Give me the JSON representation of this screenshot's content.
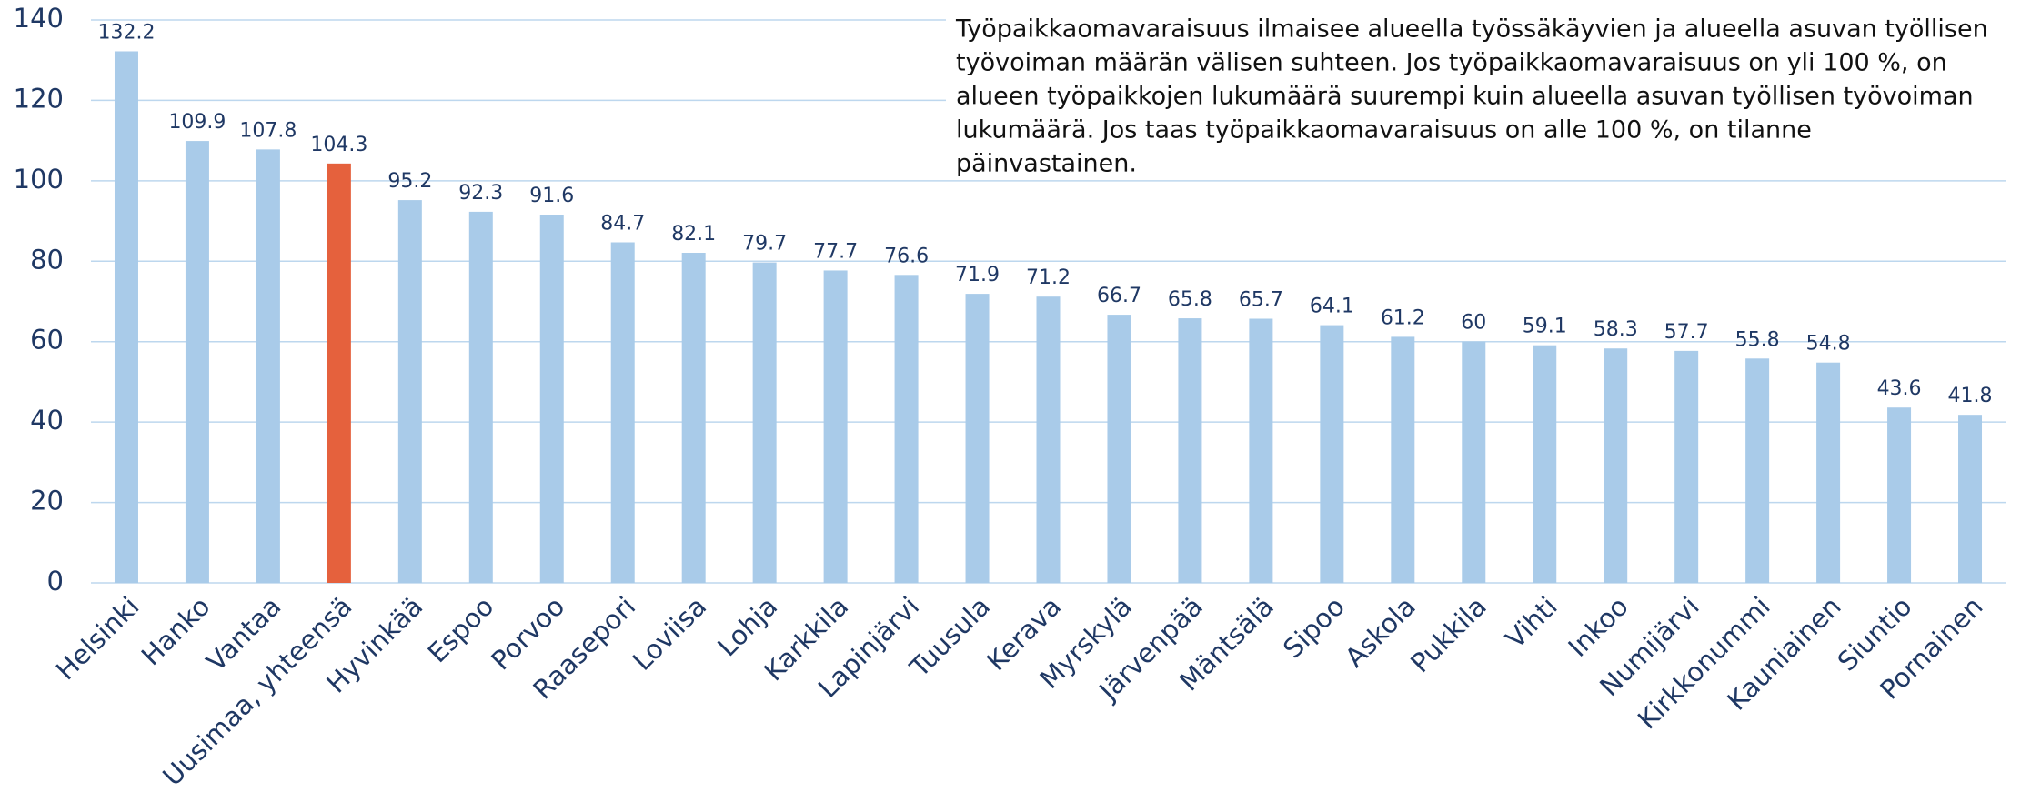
{
  "chart_data": {
    "type": "bar",
    "annotation": [
      "Työpaikkaomavaraisuus ilmaisee alueella työssäkäyvien ja alueella asuvan työllisen",
      "työvoiman määrän välisen suhteen. Jos työpaikkaomavaraisuus on yli 100 %, on",
      "alueen työpaikkojen lukumäärä suurempi kuin alueella asuvan työllisen työvoiman",
      "lukumäärä. Jos taas työpaikkaomavaraisuus on alle 100 %, on tilanne",
      "päinvastainen."
    ],
    "categories": [
      "Helsinki",
      "Hanko",
      "Vantaa",
      "Uusimaa, yhteensä",
      "Hyvinkää",
      "Espoo",
      "Porvoo",
      "Raasepori",
      "Loviisa",
      "Lohja",
      "Karkkila",
      "Lapinjärvi",
      "Tuusula",
      "Kerava",
      "Myrskylä",
      "Järvenpää",
      "Mäntsälä",
      "Sipoo",
      "Askola",
      "Pukkila",
      "Vihti",
      "Inkoo",
      "Numijärvi",
      "Kirkkonummi",
      "Kauniainen",
      "Siuntio",
      "Pornainen"
    ],
    "values": [
      132.2,
      109.9,
      107.8,
      104.3,
      95.2,
      92.3,
      91.6,
      84.7,
      82.1,
      79.7,
      77.7,
      76.6,
      71.9,
      71.2,
      66.7,
      65.8,
      65.7,
      64.1,
      61.2,
      60,
      59.1,
      58.3,
      57.7,
      55.8,
      54.8,
      43.6,
      41.8
    ],
    "colors": [
      "#a9cbe9",
      "#a9cbe9",
      "#a9cbe9",
      "#e5613d",
      "#a9cbe9",
      "#a9cbe9",
      "#a9cbe9",
      "#a9cbe9",
      "#a9cbe9",
      "#a9cbe9",
      "#a9cbe9",
      "#a9cbe9",
      "#a9cbe9",
      "#a9cbe9",
      "#a9cbe9",
      "#a9cbe9",
      "#a9cbe9",
      "#a9cbe9",
      "#a9cbe9",
      "#a9cbe9",
      "#a9cbe9",
      "#a9cbe9",
      "#a9cbe9",
      "#a9cbe9",
      "#a9cbe9",
      "#a9cbe9",
      "#a9cbe9"
    ],
    "ylim": [
      0,
      140
    ],
    "yticks": [
      0,
      20,
      40,
      60,
      80,
      100,
      120,
      140
    ],
    "grid": true
  }
}
